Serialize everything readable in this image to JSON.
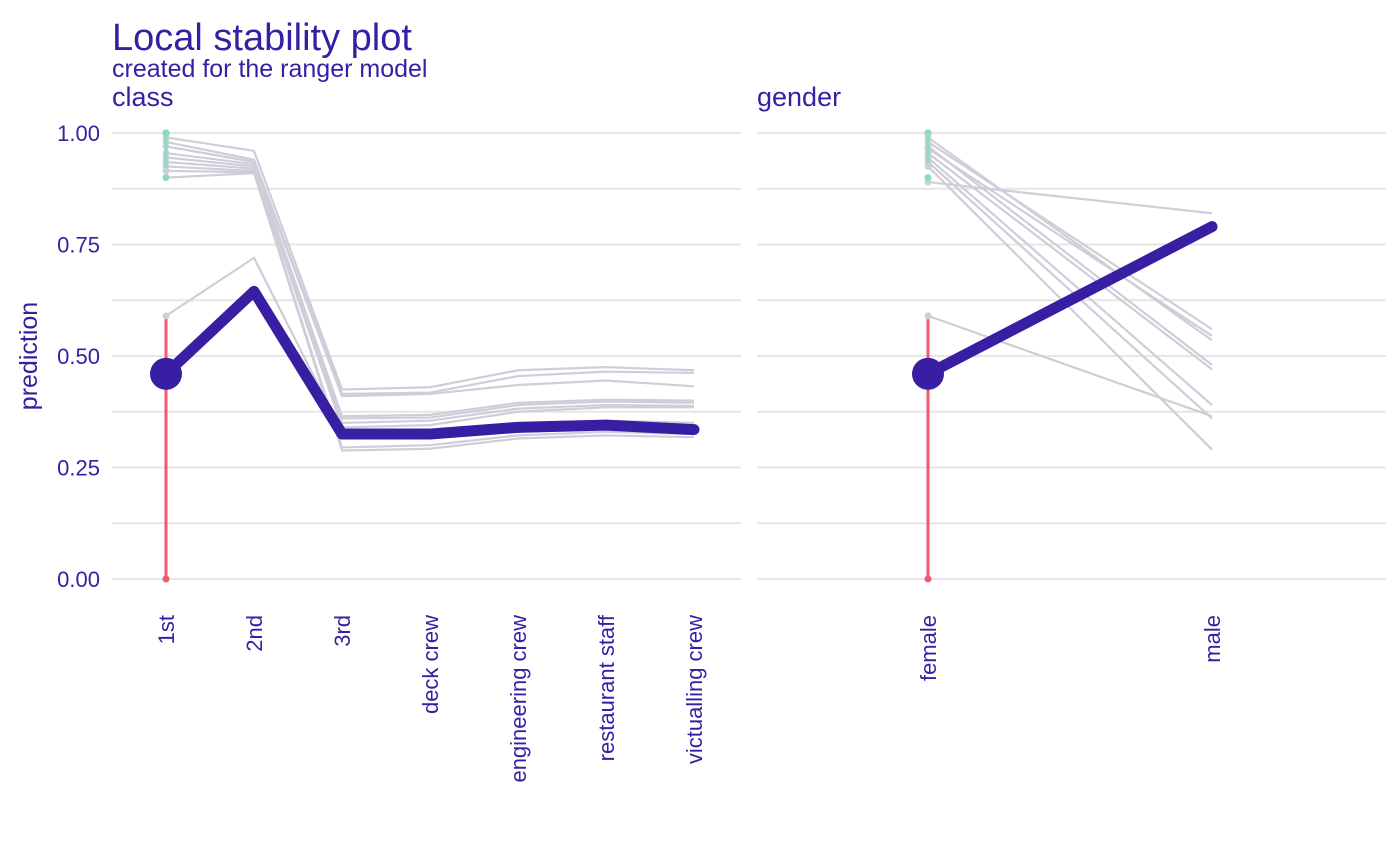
{
  "chart_data": {
    "type": "line",
    "title": "Local stability plot",
    "subtitle": "created for the ranger model",
    "ylabel": "prediction",
    "ylim": [
      0,
      1
    ],
    "yticks": [
      0.0,
      0.25,
      0.5,
      0.75,
      1.0
    ],
    "ytick_labels": [
      "0.00",
      "0.25",
      "0.50",
      "0.75",
      "1.00"
    ],
    "grid": true,
    "colors": {
      "text": "#371ea3",
      "main_line": "#371ea3",
      "neighbor_lines": "#ceced9",
      "residual_positive": "#8bdcbe",
      "residual_negative": "#f05a71",
      "grid": "#e6e6e6"
    },
    "panels": [
      {
        "name": "class",
        "categories": [
          "1st",
          "2nd",
          "3rd",
          "deck crew",
          "engineering crew",
          "restaurant staff",
          "victualling crew"
        ],
        "observation_category": "1st",
        "observation_value": 0.46,
        "main_profile": [
          0.46,
          0.645,
          0.325,
          0.325,
          0.34,
          0.345,
          0.335
        ],
        "neighbor_profiles": [
          [
            0.99,
            0.96,
            0.425,
            0.43,
            0.468,
            0.475,
            0.468
          ],
          [
            0.98,
            0.94,
            0.415,
            0.418,
            0.455,
            0.465,
            0.462
          ],
          [
            0.97,
            0.935,
            0.41,
            0.415,
            0.435,
            0.445,
            0.432
          ],
          [
            0.955,
            0.93,
            0.365,
            0.368,
            0.395,
            0.402,
            0.4
          ],
          [
            0.945,
            0.925,
            0.36,
            0.362,
            0.39,
            0.398,
            0.395
          ],
          [
            0.935,
            0.92,
            0.35,
            0.355,
            0.382,
            0.39,
            0.388
          ],
          [
            0.925,
            0.915,
            0.34,
            0.345,
            0.375,
            0.385,
            0.385
          ],
          [
            0.915,
            0.912,
            0.295,
            0.3,
            0.322,
            0.33,
            0.325
          ],
          [
            0.9,
            0.91,
            0.288,
            0.292,
            0.315,
            0.322,
            0.318
          ],
          [
            0.59,
            0.72,
            0.33,
            0.335,
            0.35,
            0.355,
            0.35
          ]
        ],
        "neighbor_observed": [
          1.0,
          1.0,
          1.0,
          1.0,
          1.0,
          1.0,
          1.0,
          1.0,
          0.9,
          0.0
        ]
      },
      {
        "name": "gender",
        "categories": [
          "female",
          "male"
        ],
        "observation_category": "female",
        "observation_value": 0.46,
        "main_profile": [
          0.46,
          0.79
        ],
        "neighbor_profiles": [
          [
            0.99,
            0.535
          ],
          [
            0.98,
            0.56
          ],
          [
            0.97,
            0.48
          ],
          [
            0.965,
            0.545
          ],
          [
            0.955,
            0.47
          ],
          [
            0.945,
            0.39
          ],
          [
            0.935,
            0.36
          ],
          [
            0.925,
            0.29
          ],
          [
            0.89,
            0.82
          ],
          [
            0.59,
            0.365
          ]
        ],
        "neighbor_observed": [
          1.0,
          1.0,
          1.0,
          1.0,
          1.0,
          1.0,
          1.0,
          1.0,
          0.9,
          0.0
        ]
      }
    ]
  }
}
